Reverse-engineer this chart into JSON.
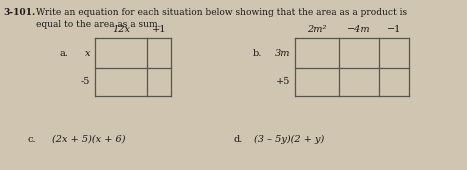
{
  "problem_num": "3-101.",
  "instruction_line1": "Write an equation for each situation below showing that the area as a product is",
  "instruction_line2": "equal to the area as a sum.",
  "background_color": "#cfc5b0",
  "text_color": "#1a1a1a",
  "grid_color": "#555555",
  "a_col_labels": [
    "12x",
    "+1"
  ],
  "a_row_labels": [
    "x",
    "-5"
  ],
  "b_col_labels": [
    "2m²",
    "−4m",
    "−1"
  ],
  "b_row_labels": [
    "3m",
    "+5"
  ],
  "c_label": "c.",
  "c_expr": "(2x + 5)(x + 6)",
  "d_label": "d.",
  "d_expr": "(3 – 5y)(2 + y)",
  "a_label": "a.",
  "b_label": "b."
}
